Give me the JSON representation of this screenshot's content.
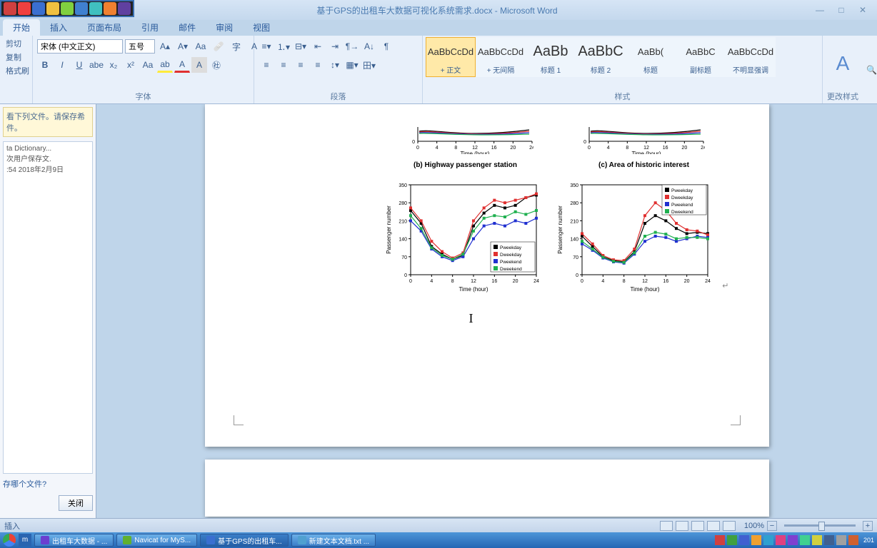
{
  "titlebar": {
    "title": "基于GPS的出租车大数据可视化系统需求.docx - Microsoft Word"
  },
  "tabs": [
    "开始",
    "插入",
    "页面布局",
    "引用",
    "邮件",
    "审阅",
    "视图"
  ],
  "active_tab": 0,
  "clipboard": {
    "cut": "剪切",
    "copy": "复制",
    "paste": "格式刷"
  },
  "font": {
    "family": "宋体 (中文正文)",
    "size": "五号",
    "group_label": "字体"
  },
  "para": {
    "group_label": "段落"
  },
  "styles": {
    "group_label": "样式",
    "items": [
      {
        "prev": "AaBbCcDd",
        "name": "+ 正文",
        "sel": true
      },
      {
        "prev": "AaBbCcDd",
        "name": "+ 无间隔"
      },
      {
        "prev": "AaBb",
        "name": "标题 1",
        "big": true
      },
      {
        "prev": "AaBbC",
        "name": "标题 2",
        "big": true
      },
      {
        "prev": "AaBb(",
        "name": "标题"
      },
      {
        "prev": "AaBbC",
        "name": "副标题"
      },
      {
        "prev": "AaBbCcDd",
        "name": "不明显强调"
      }
    ],
    "change": "更改样式"
  },
  "sidepane": {
    "msg": "看下列文件。请保存希件。",
    "lines": [
      "ta Dictionary...",
      "次用户保存文.",
      ":54 2018年2月9日"
    ],
    "q": "存哪个文件?",
    "close": "关闭"
  },
  "status": {
    "left": "插入",
    "zoom": "100%"
  },
  "charts": {
    "top": [
      {
        "xlabel": "Time (hour)"
      },
      {
        "xlabel": "Time (hour)"
      }
    ],
    "titles": [
      "(b) Highway passenger station",
      "(c) Area of historic interest"
    ],
    "main": [
      {
        "ylabel": "Passenger number",
        "xlabel": "Time (hour)",
        "ymax": 350,
        "ytick": 70,
        "xmax": 24,
        "xtick": 4,
        "legend": [
          "Pweekday",
          "Dweekday",
          "Pweekend",
          "Dweekend"
        ],
        "colors": [
          "#000000",
          "#e03030",
          "#2030d0",
          "#20b050"
        ],
        "series": [
          [
            250,
            200,
            110,
            80,
            60,
            75,
            190,
            240,
            270,
            260,
            270,
            300,
            310
          ],
          [
            260,
            210,
            130,
            90,
            65,
            85,
            210,
            260,
            290,
            280,
            290,
            300,
            315
          ],
          [
            210,
            170,
            100,
            70,
            55,
            70,
            140,
            190,
            200,
            190,
            210,
            200,
            220
          ],
          [
            230,
            180,
            105,
            75,
            60,
            80,
            170,
            220,
            230,
            225,
            245,
            235,
            250
          ]
        ],
        "legend_inside": true
      },
      {
        "ylabel": "Passenger number",
        "xlabel": "Time (hour)",
        "ymax": 350,
        "ytick": 70,
        "xmax": 24,
        "xtick": 4,
        "legend": [
          "Pweekday",
          "Dweekday",
          "Pweekend",
          "Dweekend"
        ],
        "colors": [
          "#000000",
          "#e03030",
          "#2030d0",
          "#20b050"
        ],
        "series": [
          [
            150,
            110,
            70,
            55,
            50,
            90,
            200,
            230,
            210,
            180,
            160,
            165,
            160
          ],
          [
            160,
            120,
            75,
            58,
            55,
            100,
            230,
            280,
            250,
            200,
            175,
            170,
            155
          ],
          [
            120,
            95,
            65,
            50,
            45,
            80,
            130,
            150,
            145,
            130,
            140,
            150,
            145
          ],
          [
            130,
            100,
            68,
            52,
            48,
            85,
            150,
            165,
            158,
            140,
            145,
            145,
            140
          ]
        ],
        "legend_inside": false
      }
    ]
  },
  "taskbar": {
    "tasks": [
      {
        "label": "出租车大数据 - ...",
        "color": "#6b3fd0"
      },
      {
        "label": "Navicat for MyS...",
        "color": "#60b030"
      },
      {
        "label": "基于GPS的出租车...",
        "color": "#3a6fd0",
        "active": true
      },
      {
        "label": "新建文本文档.txt ...",
        "color": "#50a0d0"
      }
    ],
    "time": "201"
  }
}
